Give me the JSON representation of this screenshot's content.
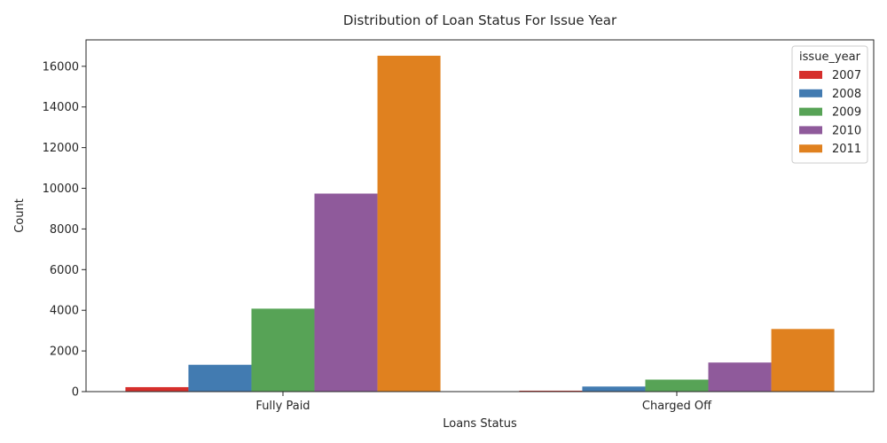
{
  "chart_data": {
    "type": "bar",
    "title": "Distribution of Loan Status For Issue Year",
    "xlabel": "Loans Status",
    "ylabel": "Count",
    "categories": [
      "Fully Paid",
      "Charged Off"
    ],
    "series": [
      {
        "name": "2007",
        "color": "#d62f2c",
        "values": [
          220,
          45
        ]
      },
      {
        "name": "2008",
        "color": "#427bb1",
        "values": [
          1320,
          250
        ]
      },
      {
        "name": "2009",
        "color": "#57a356",
        "values": [
          4080,
          590
        ]
      },
      {
        "name": "2010",
        "color": "#8f5a9b",
        "values": [
          9740,
          1430
        ]
      },
      {
        "name": "2011",
        "color": "#e0811f",
        "values": [
          16520,
          3080
        ]
      }
    ],
    "ylim": [
      0,
      17300
    ],
    "yticks": [
      0,
      2000,
      4000,
      6000,
      8000,
      10000,
      12000,
      14000,
      16000
    ],
    "legend": {
      "title": "issue_year",
      "position": "top-right"
    },
    "grid": false
  }
}
